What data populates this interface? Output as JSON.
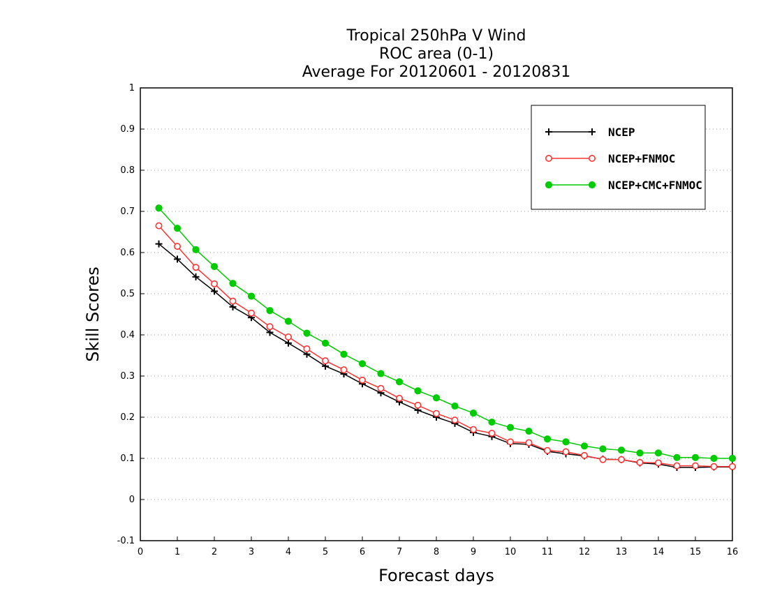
{
  "chart_data": {
    "type": "line",
    "title_lines": [
      "Tropical 250hPa V Wind",
      "ROC area (0-1)",
      "Average For 20120601 - 20120831"
    ],
    "xlabel": "Forecast days",
    "ylabel": "Skill Scores",
    "xlim": [
      0,
      16
    ],
    "ylim": [
      -0.1,
      1
    ],
    "x_ticks": [
      0,
      1,
      2,
      3,
      4,
      5,
      6,
      7,
      8,
      9,
      10,
      11,
      12,
      13,
      14,
      15,
      16
    ],
    "y_ticks": [
      -0.1,
      0,
      0.1,
      0.2,
      0.3,
      0.4,
      0.5,
      0.6,
      0.7,
      0.8,
      0.9,
      1
    ],
    "y_tick_labels": [
      "-0.1",
      "0",
      "0.1",
      "0.2",
      "0.3",
      "0.4",
      "0.5",
      "0.6",
      "0.7",
      "0.8",
      "0.9",
      "1"
    ],
    "grid": "horizontal dotted",
    "legend_position": "top-right",
    "x": [
      0.5,
      1,
      1.5,
      2,
      2.5,
      3,
      3.5,
      4,
      4.5,
      5,
      5.5,
      6,
      6.5,
      7,
      7.5,
      8,
      8.5,
      9,
      9.5,
      10,
      10.5,
      11,
      11.5,
      12,
      12.5,
      13,
      13.5,
      14,
      14.5,
      15,
      15.5,
      16
    ],
    "series": [
      {
        "name": "NCEP",
        "color": "#000000",
        "marker": "plus",
        "values": [
          0.621,
          0.584,
          0.541,
          0.506,
          0.468,
          0.442,
          0.406,
          0.38,
          0.353,
          0.324,
          0.305,
          0.281,
          0.259,
          0.237,
          0.217,
          0.2,
          0.185,
          0.163,
          0.153,
          0.136,
          0.134,
          0.117,
          0.111,
          0.106,
          0.098,
          0.097,
          0.089,
          0.086,
          0.078,
          0.078,
          0.079,
          0.079
        ]
      },
      {
        "name": "NCEP+FNMOC",
        "color": "#ff3333",
        "marker": "open-circle",
        "values": [
          0.665,
          0.615,
          0.564,
          0.524,
          0.482,
          0.453,
          0.42,
          0.395,
          0.366,
          0.337,
          0.315,
          0.29,
          0.27,
          0.246,
          0.229,
          0.209,
          0.193,
          0.17,
          0.161,
          0.14,
          0.138,
          0.119,
          0.116,
          0.107,
          0.097,
          0.097,
          0.09,
          0.089,
          0.082,
          0.082,
          0.08,
          0.08
        ]
      },
      {
        "name": "NCEP+CMC+FNMOC",
        "color": "#00cc00",
        "marker": "filled-circle",
        "values": [
          0.708,
          0.659,
          0.607,
          0.566,
          0.525,
          0.494,
          0.459,
          0.433,
          0.404,
          0.38,
          0.353,
          0.33,
          0.306,
          0.286,
          0.264,
          0.247,
          0.227,
          0.21,
          0.188,
          0.175,
          0.166,
          0.147,
          0.14,
          0.13,
          0.123,
          0.12,
          0.113,
          0.113,
          0.102,
          0.102,
          0.1,
          0.1
        ]
      }
    ]
  }
}
